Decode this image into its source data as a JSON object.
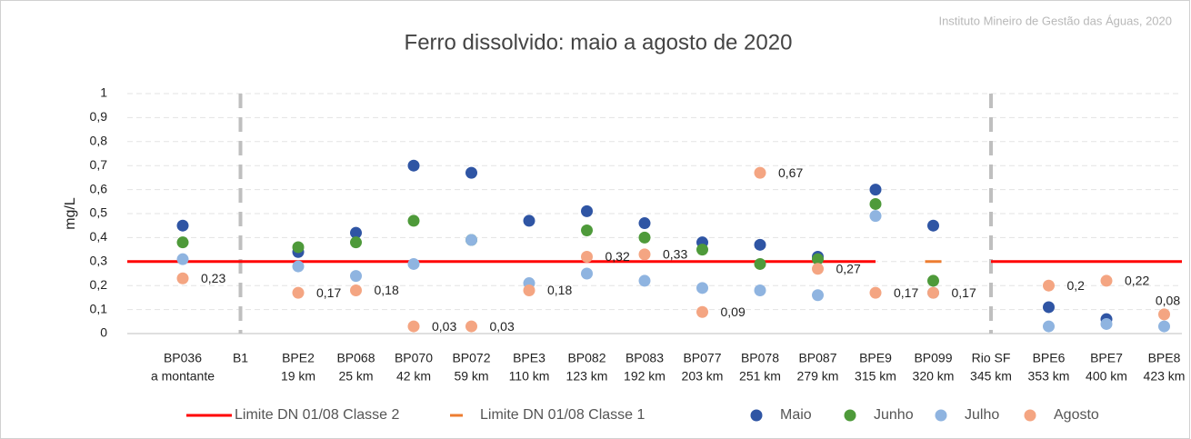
{
  "chart_data": {
    "type": "scatter",
    "title": "Ferro dissolvido: maio a agosto de 2020",
    "source": "Instituto Mineiro de Gestão das Águas, 2020",
    "y_label": "mg/L",
    "categories": [
      [
        "BP036",
        "a montante"
      ],
      [
        "B1"
      ],
      [
        "BPE2",
        "19 km"
      ],
      [
        "BP068",
        "25 km"
      ],
      [
        "BP070",
        "42 km"
      ],
      [
        "BP072",
        "59 km"
      ],
      [
        "BPE3",
        "110 km"
      ],
      [
        "BP082",
        "123 km"
      ],
      [
        "BP083",
        "192 km"
      ],
      [
        "BP077",
        "203 km"
      ],
      [
        "BP078",
        "251 km"
      ],
      [
        "BP087",
        "279 km"
      ],
      [
        "BPE9",
        "315 km"
      ],
      [
        "BP099",
        "320 km"
      ],
      [
        "Rio SF",
        "345 km"
      ],
      [
        "BPE6",
        "353 km"
      ],
      [
        "BPE7",
        "400 km"
      ],
      [
        "BPE8",
        "423 km"
      ]
    ],
    "ylim": [
      0,
      1
    ],
    "yticks": [
      0,
      {
        "value": 0.1,
        "label": "0,1"
      },
      {
        "value": 0.2,
        "label": "0,2"
      },
      {
        "value": 0.3,
        "label": "0,3"
      },
      {
        "value": 0.4,
        "label": "0,4"
      },
      {
        "value": 0.5,
        "label": "0,5"
      },
      {
        "value": 0.6,
        "label": "0,6"
      },
      {
        "value": 0.7,
        "label": "0,7"
      },
      {
        "value": 0.8,
        "label": "0,8"
      },
      {
        "value": 0.9,
        "label": "0,9"
      },
      1
    ],
    "grid": true,
    "legend": "bottom",
    "series": [
      {
        "name": "Limite DN 01/08 Classe 2",
        "type": "line",
        "color": "#ff0000",
        "values": [
          0.3,
          0.3,
          0.3,
          0.3,
          0.3,
          0.3,
          0.3,
          0.3,
          0.3,
          0.3,
          0.3,
          0.3,
          0.3,
          null,
          0.3,
          0.3,
          0.3,
          0.3
        ]
      },
      {
        "name": "Limite DN 01/08 Classe 1",
        "type": "dash",
        "color": "#ed7d31",
        "values": [
          null,
          null,
          null,
          null,
          null,
          null,
          null,
          null,
          null,
          null,
          null,
          null,
          null,
          0.3,
          null,
          null,
          null,
          null
        ]
      },
      {
        "name": "Maio",
        "color": "#2f55a4",
        "values": [
          0.45,
          null,
          0.34,
          0.42,
          0.7,
          0.67,
          0.47,
          0.51,
          0.46,
          0.38,
          0.37,
          0.32,
          0.6,
          0.45,
          null,
          0.11,
          0.06,
          null
        ]
      },
      {
        "name": "Junho",
        "color": "#4e9a3a",
        "values": [
          0.38,
          null,
          0.36,
          0.38,
          0.47,
          0.39,
          null,
          0.43,
          0.4,
          0.35,
          0.29,
          0.31,
          0.54,
          0.22,
          null,
          null,
          null,
          null
        ]
      },
      {
        "name": "Julho",
        "color": "#8fb4e0",
        "values": [
          0.31,
          null,
          0.28,
          0.24,
          0.29,
          0.39,
          0.21,
          0.25,
          0.22,
          0.19,
          0.18,
          0.16,
          0.49,
          0.17,
          null,
          0.03,
          0.04,
          0.03
        ]
      },
      {
        "name": "Agosto",
        "color": "#f4a582",
        "values": [
          0.23,
          null,
          0.17,
          0.18,
          0.03,
          0.03,
          0.18,
          0.32,
          0.33,
          0.09,
          0.67,
          0.27,
          0.17,
          0.17,
          null,
          0.2,
          0.22,
          0.08
        ],
        "value_labels": [
          "0,23",
          null,
          "0,17",
          "0,18",
          "0,03",
          "0,03",
          "0,18",
          "0,32",
          "0,33",
          "0,09",
          "0,67",
          "0,27",
          "0,17",
          "0,17",
          null,
          "0,2",
          "0,22",
          "0,08"
        ]
      }
    ]
  }
}
